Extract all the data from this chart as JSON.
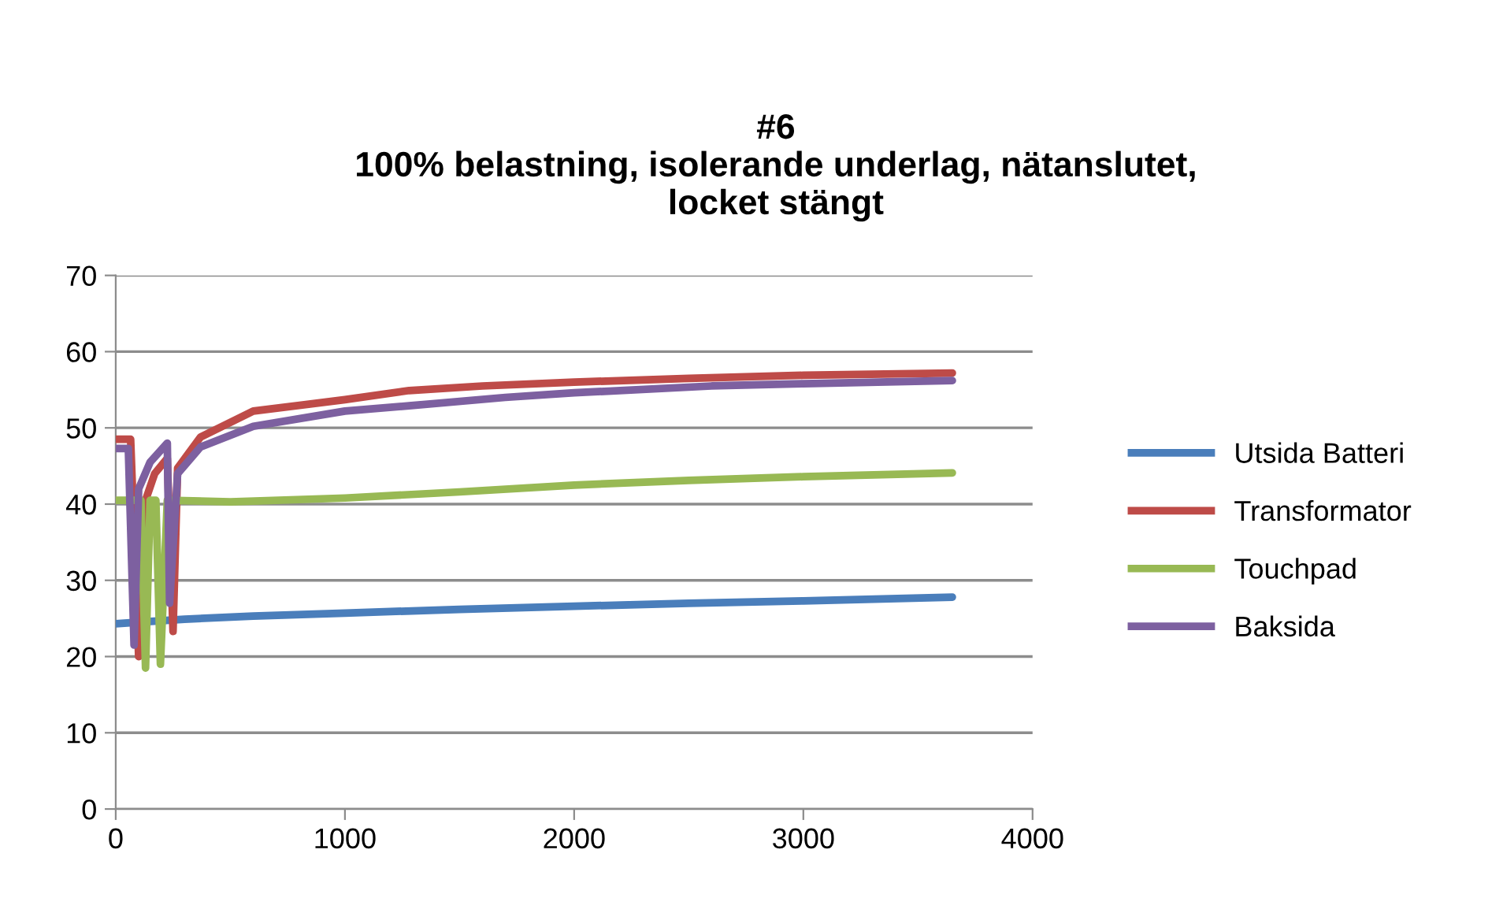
{
  "chart_data": {
    "type": "line",
    "title": "#6\n100% belastning, isolerande underlag, nätanslutet,\nlocket stängt",
    "xlim": [
      0,
      4000
    ],
    "xticks": [
      0,
      1000,
      2000,
      3000,
      4000
    ],
    "ylim": [
      0,
      70
    ],
    "yticks": [
      0,
      10,
      20,
      30,
      40,
      50,
      60,
      70
    ],
    "grid": "y",
    "legend": "right",
    "marker": "none",
    "line_style": "solid",
    "series": [
      {
        "name": "Utsida Batteri",
        "color": "#4a7ebb",
        "x": [
          0,
          100,
          300,
          600,
          1000,
          1500,
          2000,
          2500,
          3000,
          3650
        ],
        "values": [
          24.3,
          24.5,
          24.9,
          25.3,
          25.7,
          26.2,
          26.6,
          27.0,
          27.3,
          27.8
        ]
      },
      {
        "name": "Transformator",
        "color": "#be4b48",
        "x": [
          0,
          65,
          100,
          130,
          170,
          225,
          250,
          270,
          370,
          600,
          1000,
          1280,
          1600,
          2000,
          2500,
          3000,
          3650
        ],
        "values": [
          48.5,
          48.5,
          20.0,
          40.5,
          44.0,
          46.0,
          23.3,
          44.7,
          48.8,
          52.2,
          53.7,
          54.9,
          55.5,
          56.0,
          56.5,
          56.9,
          57.2
        ]
      },
      {
        "name": "Touchpad",
        "color": "#98b954",
        "x": [
          0,
          110,
          130,
          150,
          175,
          195,
          225,
          500,
          1000,
          1500,
          2000,
          2500,
          3000,
          3650
        ],
        "values": [
          40.5,
          40.5,
          18.5,
          40.5,
          40.5,
          19.0,
          40.5,
          40.3,
          40.8,
          41.6,
          42.5,
          43.1,
          43.6,
          44.1
        ]
      },
      {
        "name": "Baksida",
        "color": "#7d60a0",
        "x": [
          0,
          55,
          80,
          100,
          150,
          225,
          235,
          270,
          370,
          600,
          1000,
          1280,
          1700,
          2000,
          2600,
          3000,
          3650
        ],
        "values": [
          47.3,
          47.3,
          21.5,
          42.0,
          45.5,
          48.0,
          27.0,
          44.0,
          47.5,
          50.2,
          52.2,
          52.9,
          54.0,
          54.6,
          55.5,
          55.8,
          56.2
        ]
      }
    ]
  }
}
